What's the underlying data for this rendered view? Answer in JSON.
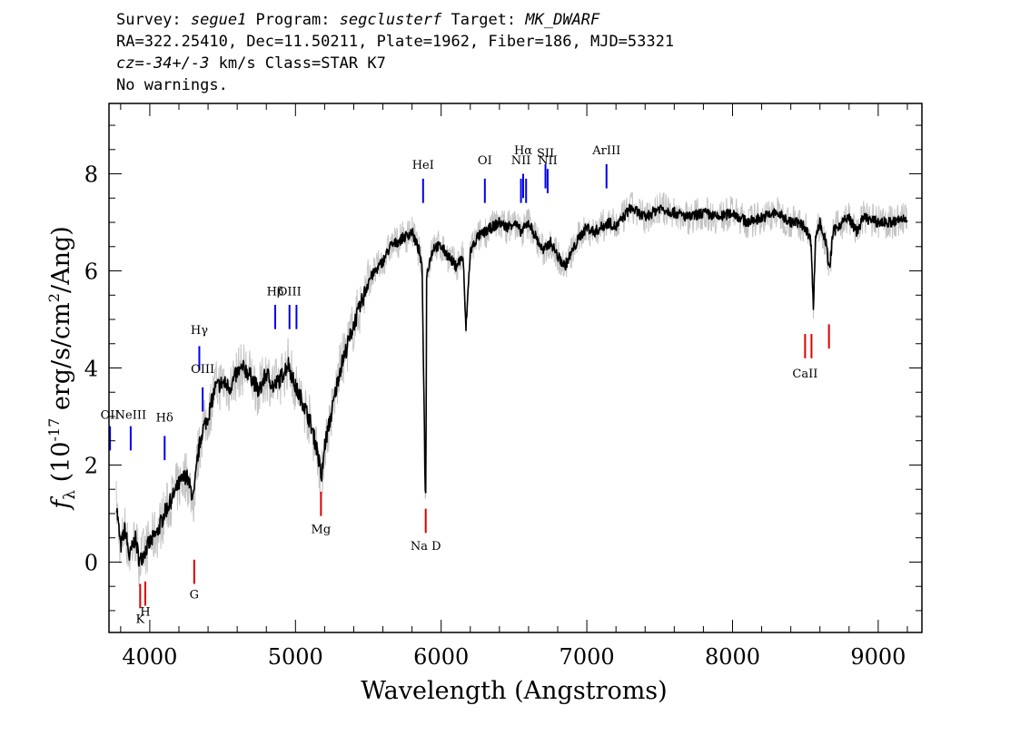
{
  "header": {
    "line1": {
      "survey_label": "Survey: ",
      "survey": "segue1",
      "program_label": " Program: ",
      "program": "segclusterf",
      "target_label": " Target: ",
      "target": "MK_DWARF"
    },
    "line2": "RA=322.25410, Dec=11.50211, Plate=1962, Fiber=186, MJD=53321",
    "line3": {
      "cz_label": "cz",
      "eq": "=",
      "cz_value": "-34+/-3",
      "rest": " km/s Class=STAR K7"
    },
    "line4": "No warnings."
  },
  "chart_data": {
    "type": "line",
    "xlabel": "Wavelength (Angstroms)",
    "ylabel_prefix": "f",
    "ylabel_sub": "λ",
    "ylabel_text": " (10",
    "ylabel_exp": "-17",
    "ylabel_text2": " erg/s/cm",
    "ylabel_exp2": "2",
    "ylabel_text3": "/Ang)",
    "xlim": [
      3720,
      9300
    ],
    "ylim": [
      -1.45,
      9.45
    ],
    "x_ticks": [
      4000,
      5000,
      6000,
      7000,
      8000,
      9000
    ],
    "y_ticks": [
      0,
      2,
      4,
      6,
      8
    ],
    "x_tick_labels": [
      "4000",
      "5000",
      "6000",
      "7000",
      "8000",
      "9000"
    ],
    "y_tick_labels": [
      "0",
      "2",
      "4",
      "6",
      "8"
    ],
    "x_minor_step": 200,
    "y_minor_step": 0.5,
    "series": [
      {
        "role": "flux",
        "color": "#000000",
        "x": [
          3770,
          3800,
          3830,
          3860,
          3900,
          3930,
          3960,
          4000,
          4050,
          4100,
          4150,
          4200,
          4250,
          4300,
          4330,
          4360,
          4400,
          4450,
          4500,
          4550,
          4600,
          4650,
          4700,
          4750,
          4800,
          4850,
          4900,
          4950,
          5000,
          5050,
          5100,
          5150,
          5180,
          5200,
          5250,
          5300,
          5350,
          5400,
          5450,
          5500,
          5550,
          5600,
          5650,
          5700,
          5750,
          5800,
          5850,
          5870,
          5890,
          5895,
          5900,
          5920,
          5950,
          6000,
          6050,
          6100,
          6150,
          6170,
          6200,
          6250,
          6300,
          6350,
          6400,
          6450,
          6500,
          6550,
          6600,
          6650,
          6700,
          6750,
          6800,
          6850,
          6900,
          6950,
          7000,
          7050,
          7100,
          7150,
          7200,
          7250,
          7300,
          7350,
          7400,
          7500,
          7600,
          7700,
          7800,
          7900,
          8000,
          8100,
          8200,
          8300,
          8400,
          8450,
          8500,
          8540,
          8555,
          8570,
          8600,
          8640,
          8665,
          8690,
          8750,
          8800,
          8850,
          8900,
          9000,
          9100,
          9200
        ],
        "y": [
          1.2,
          0.3,
          0.7,
          0.1,
          0.5,
          0.0,
          0.2,
          0.4,
          0.6,
          1.0,
          1.3,
          1.6,
          1.8,
          1.3,
          2.2,
          2.7,
          3.0,
          3.6,
          3.7,
          3.6,
          3.9,
          4.0,
          3.8,
          3.5,
          3.9,
          3.6,
          3.8,
          4.1,
          3.6,
          3.3,
          2.9,
          2.3,
          1.7,
          2.4,
          3.1,
          3.9,
          4.4,
          4.9,
          5.3,
          5.8,
          6.0,
          6.2,
          6.5,
          6.6,
          6.7,
          6.8,
          6.4,
          6.0,
          1.6,
          1.3,
          5.9,
          6.2,
          6.5,
          6.5,
          6.3,
          6.1,
          6.3,
          4.8,
          6.4,
          6.7,
          6.8,
          6.9,
          7.0,
          6.9,
          7.0,
          6.8,
          7.0,
          6.7,
          6.4,
          6.6,
          6.3,
          6.1,
          6.4,
          6.7,
          6.9,
          6.8,
          6.9,
          7.0,
          6.9,
          7.1,
          7.3,
          7.2,
          7.1,
          7.3,
          7.2,
          7.1,
          7.2,
          7.1,
          7.2,
          7.0,
          7.1,
          7.2,
          7.0,
          7.0,
          6.9,
          6.6,
          5.2,
          6.7,
          7.0,
          6.6,
          6.0,
          6.8,
          7.0,
          7.1,
          6.8,
          7.1,
          7.0,
          7.0,
          7.1
        ]
      }
    ],
    "emission_lines": [
      {
        "label": "OII",
        "x": 3727,
        "y1": 2.3,
        "y2": 2.8,
        "ty": 2.95
      },
      {
        "label": "NeIII",
        "x": 3869,
        "y1": 2.3,
        "y2": 2.8,
        "ty": 2.95
      },
      {
        "label": "Hδ",
        "x": 4102,
        "y1": 2.1,
        "y2": 2.6,
        "ty": 2.9
      },
      {
        "label": "Hγ",
        "x": 4340,
        "y1": 3.95,
        "y2": 4.45,
        "ty": 4.7
      },
      {
        "label": "OIII",
        "x": 4363,
        "y1": 3.1,
        "y2": 3.6,
        "ty": 3.9
      },
      {
        "label": "Hβ",
        "x": 4861,
        "y1": 4.8,
        "y2": 5.3,
        "ty": 5.5
      },
      {
        "label": "OIII",
        "x": 4959,
        "y1": 4.8,
        "y2": 5.3,
        "ty": 5.5
      },
      {
        "label": "",
        "x": 5007,
        "y1": 4.8,
        "y2": 5.3,
        "ty": 5.5
      },
      {
        "label": "HeI",
        "x": 5876,
        "y1": 7.4,
        "y2": 7.9,
        "ty": 8.1
      },
      {
        "label": "OI",
        "x": 6300,
        "y1": 7.4,
        "y2": 7.9,
        "ty": 8.2
      },
      {
        "label": "NII",
        "x": 6548,
        "y1": 7.4,
        "y2": 7.9,
        "ty": 8.2
      },
      {
        "label": "Hα",
        "x": 6563,
        "y1": 7.5,
        "y2": 8.0,
        "ty": 8.4
      },
      {
        "label": "",
        "x": 6583,
        "y1": 7.4,
        "y2": 7.9,
        "ty": 8.2
      },
      {
        "label": "SII",
        "x": 6716,
        "y1": 7.7,
        "y2": 8.2,
        "ty": 8.35
      },
      {
        "label": "NII",
        "x": 6731,
        "y1": 7.6,
        "y2": 8.1,
        "ty": 8.2
      },
      {
        "label": "ArIII",
        "x": 7135,
        "y1": 7.7,
        "y2": 8.2,
        "ty": 8.4
      }
    ],
    "absorption_lines": [
      {
        "label": "K",
        "x": 3934,
        "y1": -0.95,
        "y2": -0.45,
        "ty": -1.25
      },
      {
        "label": "H",
        "x": 3969,
        "y1": -0.9,
        "y2": -0.4,
        "ty": -1.1
      },
      {
        "label": "G",
        "x": 4305,
        "y1": -0.45,
        "y2": 0.05,
        "ty": -0.75
      },
      {
        "label": "Mg",
        "x": 5175,
        "y1": 0.95,
        "y2": 1.45,
        "ty": 0.6
      },
      {
        "label": "Na D",
        "x": 5894,
        "y1": 0.6,
        "y2": 1.1,
        "ty": 0.25
      },
      {
        "label": "CaII",
        "x": 8498,
        "y1": 4.2,
        "y2": 4.7,
        "ty": 3.8
      },
      {
        "label": "",
        "x": 8542,
        "y1": 4.2,
        "y2": 4.7,
        "ty": 3.8
      },
      {
        "label": "",
        "x": 8662,
        "y1": 4.4,
        "y2": 4.9,
        "ty": 3.8
      }
    ],
    "colors": {
      "flux": "#000000",
      "error": "#c4c4c4",
      "emission": "#0000ee",
      "absorption": "#dd0000"
    }
  }
}
